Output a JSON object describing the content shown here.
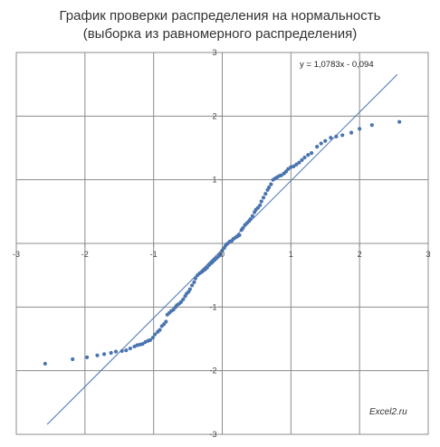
{
  "title_line1": "График проверки  распределения на нормальность",
  "title_line2": "(выборка из равномерного распределения)",
  "trendline_label": "y = 1,0783x - 0,094",
  "watermark": "Excel2.ru",
  "colors": {
    "points": "#4a74b0",
    "trendline": "#4a74b0",
    "grid": "#8c8c8c",
    "axis": "#8c8c8c"
  },
  "chart_data": {
    "type": "scatter",
    "xlim": [
      -3,
      3
    ],
    "ylim": [
      -3,
      3
    ],
    "x_ticks": [
      "-3",
      "-2",
      "-1",
      "0",
      "1",
      "2",
      "3"
    ],
    "y_ticks": [
      "3",
      "2",
      "1",
      "0",
      "-1",
      "-2",
      "-3"
    ],
    "grid": true,
    "trendline": {
      "slope": 1.0783,
      "intercept": -0.094,
      "x_range": [
        -2.55,
        2.55
      ]
    },
    "points": [
      [
        -2.58,
        -1.89
      ],
      [
        -2.18,
        -1.82
      ],
      [
        -1.97,
        -1.79
      ],
      [
        -1.82,
        -1.76
      ],
      [
        -1.72,
        -1.74
      ],
      [
        -1.62,
        -1.72
      ],
      [
        -1.55,
        -1.7
      ],
      [
        -1.46,
        -1.69
      ],
      [
        -1.4,
        -1.68
      ],
      [
        -1.34,
        -1.65
      ],
      [
        -1.28,
        -1.62
      ],
      [
        -1.24,
        -1.6
      ],
      [
        -1.2,
        -1.59
      ],
      [
        -1.16,
        -1.58
      ],
      [
        -1.12,
        -1.55
      ],
      [
        -1.08,
        -1.53
      ],
      [
        -1.05,
        -1.52
      ],
      [
        -1.01,
        -1.48
      ],
      [
        -0.98,
        -1.43
      ],
      [
        -0.94,
        -1.39
      ],
      [
        -0.91,
        -1.36
      ],
      [
        -0.88,
        -1.3
      ],
      [
        -0.85,
        -1.27
      ],
      [
        -0.82,
        -1.23
      ],
      [
        -0.8,
        -1.12
      ],
      [
        -0.77,
        -1.09
      ],
      [
        -0.74,
        -1.06
      ],
      [
        -0.71,
        -1.04
      ],
      [
        -0.68,
        -1.0
      ],
      [
        -0.66,
        -0.97
      ],
      [
        -0.63,
        -0.95
      ],
      [
        -0.6,
        -0.92
      ],
      [
        -0.57,
        -0.88
      ],
      [
        -0.54,
        -0.83
      ],
      [
        -0.52,
        -0.79
      ],
      [
        -0.49,
        -0.76
      ],
      [
        -0.47,
        -0.72
      ],
      [
        -0.44,
        -0.66
      ],
      [
        -0.41,
        -0.61
      ],
      [
        -0.39,
        -0.55
      ],
      [
        -0.36,
        -0.5
      ],
      [
        -0.33,
        -0.47
      ],
      [
        -0.3,
        -0.45
      ],
      [
        -0.28,
        -0.43
      ],
      [
        -0.25,
        -0.41
      ],
      [
        -0.22,
        -0.38
      ],
      [
        -0.19,
        -0.34
      ],
      [
        -0.16,
        -0.31
      ],
      [
        -0.14,
        -0.29
      ],
      [
        -0.11,
        -0.26
      ],
      [
        -0.08,
        -0.23
      ],
      [
        -0.05,
        -0.2
      ],
      [
        -0.03,
        -0.17
      ],
      [
        0.0,
        -0.11
      ],
      [
        0.03,
        -0.07
      ],
      [
        0.05,
        -0.03
      ],
      [
        0.08,
        0.0
      ],
      [
        0.11,
        0.03
      ],
      [
        0.14,
        0.04
      ],
      [
        0.16,
        0.07
      ],
      [
        0.19,
        0.09
      ],
      [
        0.22,
        0.11
      ],
      [
        0.25,
        0.13
      ],
      [
        0.28,
        0.21
      ],
      [
        0.3,
        0.24
      ],
      [
        0.33,
        0.29
      ],
      [
        0.36,
        0.32
      ],
      [
        0.39,
        0.35
      ],
      [
        0.41,
        0.38
      ],
      [
        0.44,
        0.43
      ],
      [
        0.47,
        0.49
      ],
      [
        0.49,
        0.53
      ],
      [
        0.52,
        0.56
      ],
      [
        0.55,
        0.6
      ],
      [
        0.57,
        0.66
      ],
      [
        0.6,
        0.72
      ],
      [
        0.63,
        0.78
      ],
      [
        0.66,
        0.84
      ],
      [
        0.68,
        0.88
      ],
      [
        0.71,
        0.93
      ],
      [
        0.74,
        1.0
      ],
      [
        0.77,
        1.02
      ],
      [
        0.8,
        1.04
      ],
      [
        0.83,
        1.06
      ],
      [
        0.86,
        1.07
      ],
      [
        0.9,
        1.1
      ],
      [
        0.93,
        1.13
      ],
      [
        0.96,
        1.17
      ],
      [
        1.0,
        1.2
      ],
      [
        1.04,
        1.21
      ],
      [
        1.08,
        1.24
      ],
      [
        1.12,
        1.27
      ],
      [
        1.16,
        1.31
      ],
      [
        1.2,
        1.35
      ],
      [
        1.25,
        1.39
      ],
      [
        1.3,
        1.42
      ],
      [
        1.38,
        1.52
      ],
      [
        1.44,
        1.57
      ],
      [
        1.5,
        1.61
      ],
      [
        1.58,
        1.66
      ],
      [
        1.66,
        1.68
      ],
      [
        1.75,
        1.7
      ],
      [
        1.88,
        1.74
      ],
      [
        2.0,
        1.8
      ],
      [
        2.18,
        1.86
      ],
      [
        2.58,
        1.91
      ]
    ]
  }
}
